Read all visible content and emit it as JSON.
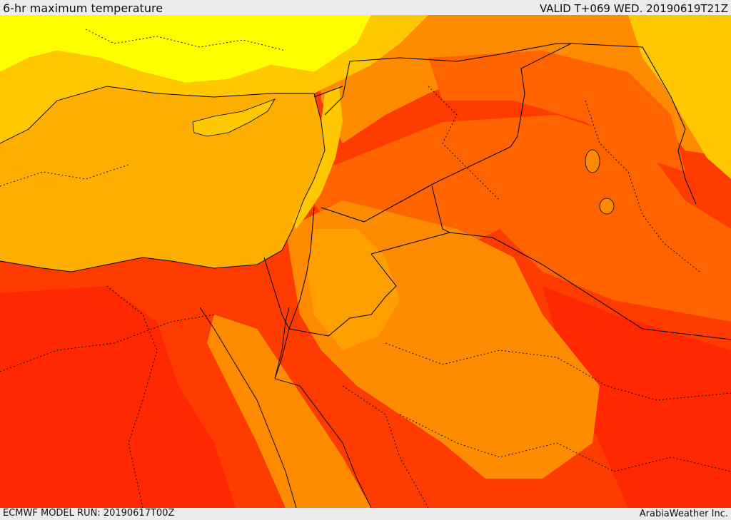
{
  "header": {
    "title": "6-hr maximum temperature",
    "valid": "VALID T+069 WED. 20190619T21Z"
  },
  "footer": {
    "model_run": "ECMWF MODEL RUN: 20190617T00Z",
    "credit": "ArabiaWeather Inc."
  },
  "colors": {
    "background": "#ececec",
    "mediterranean": "#ffaf00",
    "cool_yellow": "#ffff00",
    "light_orange": "#ffc800",
    "orange": "#ff8c00",
    "dark_orange": "#ff6400",
    "red_orange": "#ff3c00",
    "red": "#ff2800",
    "deep_red": "#f51e00",
    "border_line": "#000000"
  },
  "legend_shading": [
    "cool_yellow",
    "light_orange",
    "mediterranean",
    "orange",
    "dark_orange",
    "red_orange",
    "red"
  ]
}
